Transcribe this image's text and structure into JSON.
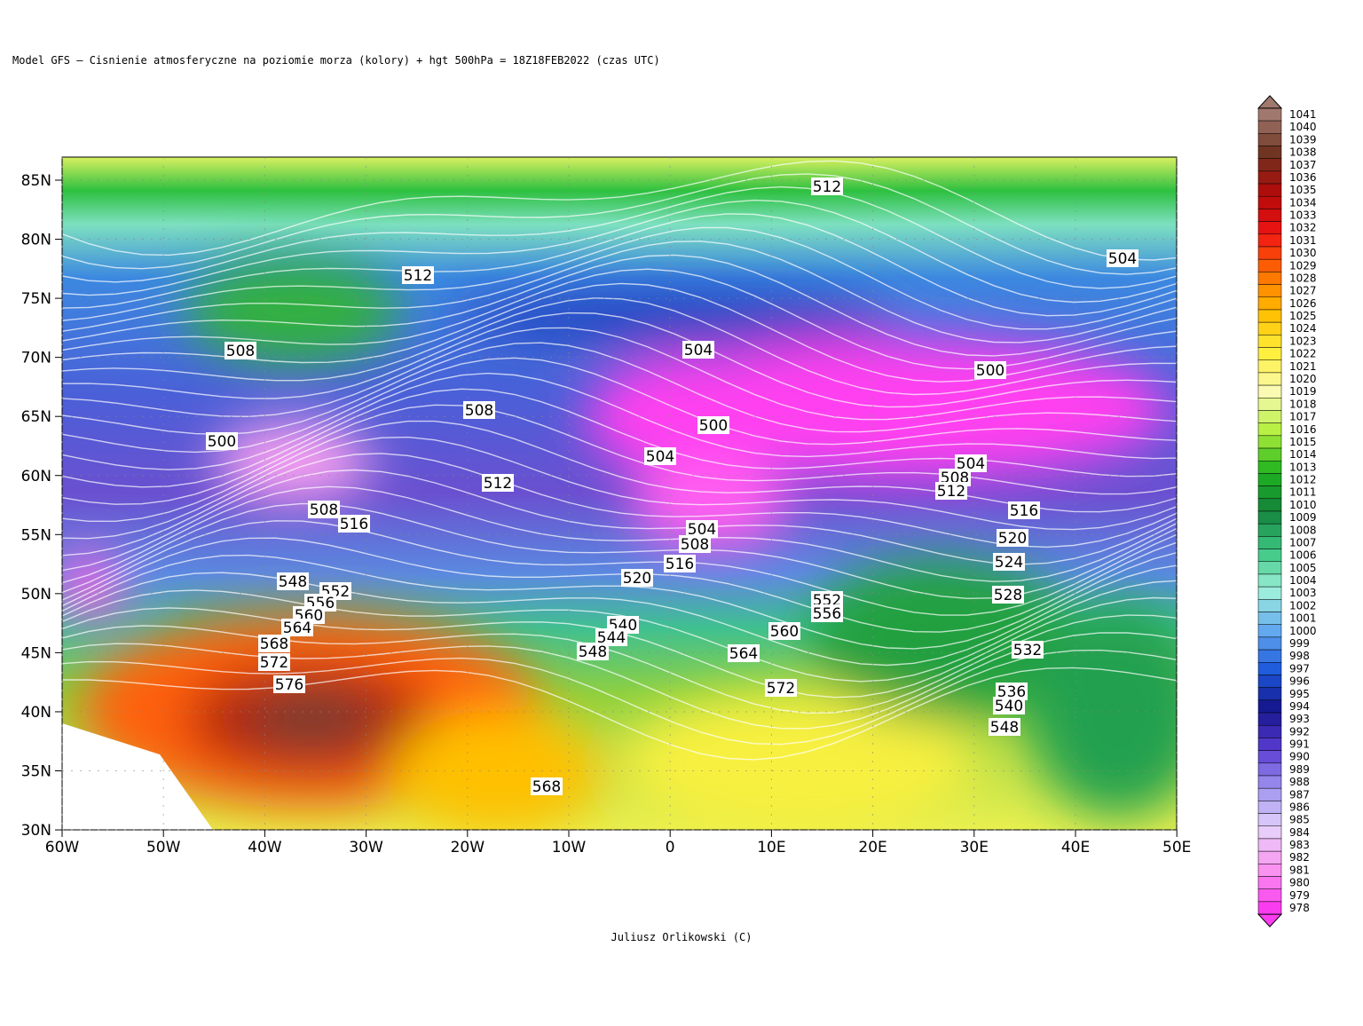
{
  "header": {
    "title": "Model GFS – Cisnienie atmosferyczne na poziomie morza (kolory) + hgt 500hPa   = 18Z18FEB2022 (czas UTC)"
  },
  "footer": {
    "credit": "Juliusz Orlikowski (C)"
  },
  "map": {
    "lat_ticks": [
      "85N",
      "80N",
      "75N",
      "70N",
      "65N",
      "60N",
      "55N",
      "50N",
      "45N",
      "40N",
      "35N",
      "30N"
    ],
    "lon_ticks": [
      "60W",
      "50W",
      "40W",
      "30W",
      "20W",
      "10W",
      "0",
      "10E",
      "20E",
      "30E",
      "40E",
      "50E"
    ],
    "contour_labels": [
      "512",
      "504",
      "512",
      "508",
      "504",
      "500",
      "508",
      "500",
      "500",
      "504",
      "504",
      "512",
      "508",
      "512",
      "516",
      "508",
      "516",
      "504",
      "520",
      "508",
      "516",
      "524",
      "548",
      "552",
      "520",
      "528",
      "552",
      "556",
      "556",
      "560",
      "564",
      "540",
      "544",
      "548",
      "560",
      "564",
      "532",
      "568",
      "572",
      "576",
      "572",
      "536",
      "540",
      "548",
      "568"
    ]
  },
  "colorbar": {
    "labels": [
      "1041",
      "1040",
      "1039",
      "1038",
      "1037",
      "1036",
      "1035",
      "1034",
      "1033",
      "1032",
      "1031",
      "1030",
      "1029",
      "1028",
      "1027",
      "1026",
      "1025",
      "1024",
      "1023",
      "1022",
      "1021",
      "1020",
      "1019",
      "1018",
      "1017",
      "1016",
      "1015",
      "1014",
      "1013",
      "1012",
      "1011",
      "1010",
      "1009",
      "1008",
      "1007",
      "1006",
      "1005",
      "1004",
      "1003",
      "1002",
      "1001",
      "1000",
      "999",
      "998",
      "997",
      "996",
      "995",
      "994",
      "993",
      "992",
      "991",
      "990",
      "989",
      "988",
      "987",
      "986",
      "985",
      "984",
      "983",
      "982",
      "981",
      "980",
      "979",
      "978"
    ]
  }
}
